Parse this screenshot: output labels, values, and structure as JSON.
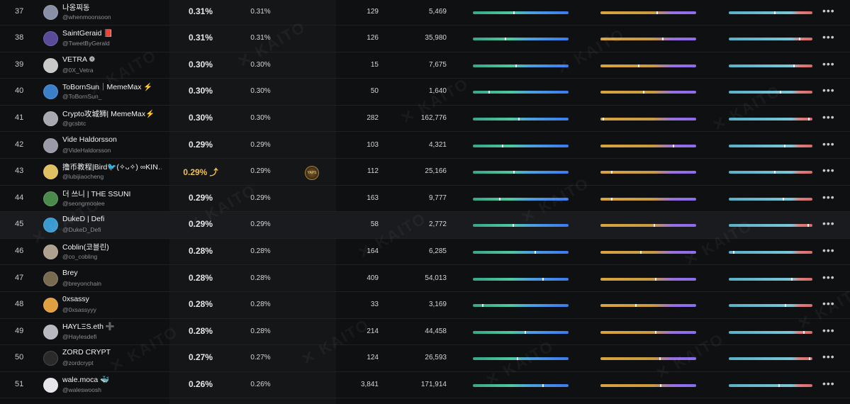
{
  "watermark": "✕ KAITO",
  "more_label": "•••",
  "rows": [
    {
      "rank": "37",
      "name": "나옹찌동",
      "handle": "@whenmoonsoon",
      "mindshare": "0.31%",
      "mindshare2": "0.31%",
      "v1": "129",
      "v2": "5,469",
      "p1": 0.43,
      "p2": 0.59,
      "p3": 0.55,
      "avatar_color": "#8a8fa8",
      "highlight": false,
      "gold": false,
      "badge": ""
    },
    {
      "rank": "38",
      "name": "SaintGeraid 📕",
      "handle": "@TweetByGerald",
      "mindshare": "0.31%",
      "mindshare2": "0.31%",
      "v1": "126",
      "v2": "35,980",
      "p1": 0.34,
      "p2": 0.65,
      "p3": 0.85,
      "avatar_color": "#5a4a9a",
      "highlight": false,
      "gold": false,
      "badge": ""
    },
    {
      "rank": "39",
      "name": "VETRA ❁",
      "handle": "@0X_Vetra",
      "mindshare": "0.30%",
      "mindshare2": "0.30%",
      "v1": "15",
      "v2": "7,675",
      "p1": 0.45,
      "p2": 0.4,
      "p3": 0.78,
      "avatar_color": "#c9c9c9",
      "highlight": false,
      "gold": false,
      "badge": ""
    },
    {
      "rank": "40",
      "name": "ToBornSun｜MemeMax ⚡",
      "handle": "@ToBornSun_",
      "mindshare": "0.30%",
      "mindshare2": "0.30%",
      "v1": "50",
      "v2": "1,640",
      "p1": 0.17,
      "p2": 0.45,
      "p3": 0.62,
      "avatar_color": "#3a7fc9",
      "highlight": false,
      "gold": false,
      "badge": ""
    },
    {
      "rank": "41",
      "name": "Crypto攻城狮| MemeMax⚡",
      "handle": "@gcsbtc",
      "mindshare": "0.30%",
      "mindshare2": "0.30%",
      "v1": "282",
      "v2": "162,776",
      "p1": 0.48,
      "p2": 0.03,
      "p3": 0.96,
      "avatar_color": "#a8a8b0",
      "highlight": false,
      "gold": false,
      "badge": ""
    },
    {
      "rank": "42",
      "name": "Vide Haldorsson",
      "handle": "@VideHaldorsson",
      "mindshare": "0.29%",
      "mindshare2": "0.29%",
      "v1": "103",
      "v2": "4,321",
      "p1": 0.31,
      "p2": 0.76,
      "p3": 0.67,
      "avatar_color": "#9a9aa8",
      "highlight": false,
      "gold": false,
      "badge": ""
    },
    {
      "rank": "43",
      "name": "撸币教程|Bird🐦(✧ᴗ✧) ∞KIN…",
      "handle": "@lubijiaocheng",
      "mindshare": "0.29% ⤴",
      "mindshare2": "0.29%",
      "v1": "112",
      "v2": "25,166",
      "p1": 0.43,
      "p2": 0.12,
      "p3": 0.55,
      "avatar_color": "#e0c060",
      "highlight": false,
      "gold": true,
      "badge": "YAPS"
    },
    {
      "rank": "44",
      "name": "더 쓰니 | THE SSUNI",
      "handle": "@seongmoolee",
      "mindshare": "0.29%",
      "mindshare2": "0.29%",
      "v1": "163",
      "v2": "9,777",
      "p1": 0.28,
      "p2": 0.12,
      "p3": 0.65,
      "avatar_color": "#4a8a4a",
      "highlight": false,
      "gold": false,
      "badge": ""
    },
    {
      "rank": "45",
      "name": "DukeD | Defi",
      "handle": "@DukeD_Defi",
      "mindshare": "0.29%",
      "mindshare2": "0.29%",
      "v1": "58",
      "v2": "2,772",
      "p1": 0.42,
      "p2": 0.56,
      "p3": 0.95,
      "avatar_color": "#3a9ad0",
      "highlight": true,
      "gold": false,
      "badge": ""
    },
    {
      "rank": "46",
      "name": "Coblin(코블린)",
      "handle": "@co_cobling",
      "mindshare": "0.28%",
      "mindshare2": "0.28%",
      "v1": "164",
      "v2": "6,285",
      "p1": 0.65,
      "p2": 0.42,
      "p3": 0.06,
      "avatar_color": "#b0a090",
      "highlight": false,
      "gold": false,
      "badge": ""
    },
    {
      "rank": "47",
      "name": "Brey",
      "handle": "@breyonchain",
      "mindshare": "0.28%",
      "mindshare2": "0.28%",
      "v1": "409",
      "v2": "54,013",
      "p1": 0.73,
      "p2": 0.58,
      "p3": 0.75,
      "avatar_color": "#7a6a50",
      "highlight": false,
      "gold": false,
      "badge": ""
    },
    {
      "rank": "48",
      "name": "0xsassy",
      "handle": "@0xsassyyy",
      "mindshare": "0.28%",
      "mindshare2": "0.28%",
      "v1": "33",
      "v2": "3,169",
      "p1": 0.1,
      "p2": 0.37,
      "p3": 0.68,
      "avatar_color": "#e0a040",
      "highlight": false,
      "gold": false,
      "badge": ""
    },
    {
      "rank": "49",
      "name": "HAYLΞS.eth ➕",
      "handle": "@Haylesdefi",
      "mindshare": "0.28%",
      "mindshare2": "0.28%",
      "v1": "214",
      "v2": "44,458",
      "p1": 0.55,
      "p2": 0.58,
      "p3": 0.9,
      "avatar_color": "#b8b8c0",
      "highlight": false,
      "gold": false,
      "badge": ""
    },
    {
      "rank": "50",
      "name": "ZORD CRYPT",
      "handle": "@zordcrypt",
      "mindshare": "0.27%",
      "mindshare2": "0.27%",
      "v1": "124",
      "v2": "26,593",
      "p1": 0.47,
      "p2": 0.62,
      "p3": 0.97,
      "avatar_color": "#2a2a2a",
      "highlight": false,
      "gold": false,
      "badge": ""
    },
    {
      "rank": "51",
      "name": "wale.moca 🐳",
      "handle": "@waleswoosh",
      "mindshare": "0.26%",
      "mindshare2": "0.26%",
      "v1": "3,841",
      "v2": "171,914",
      "p1": 0.73,
      "p2": 0.63,
      "p3": 0.6,
      "avatar_color": "#e6e6ea",
      "highlight": false,
      "gold": false,
      "badge": ""
    }
  ]
}
